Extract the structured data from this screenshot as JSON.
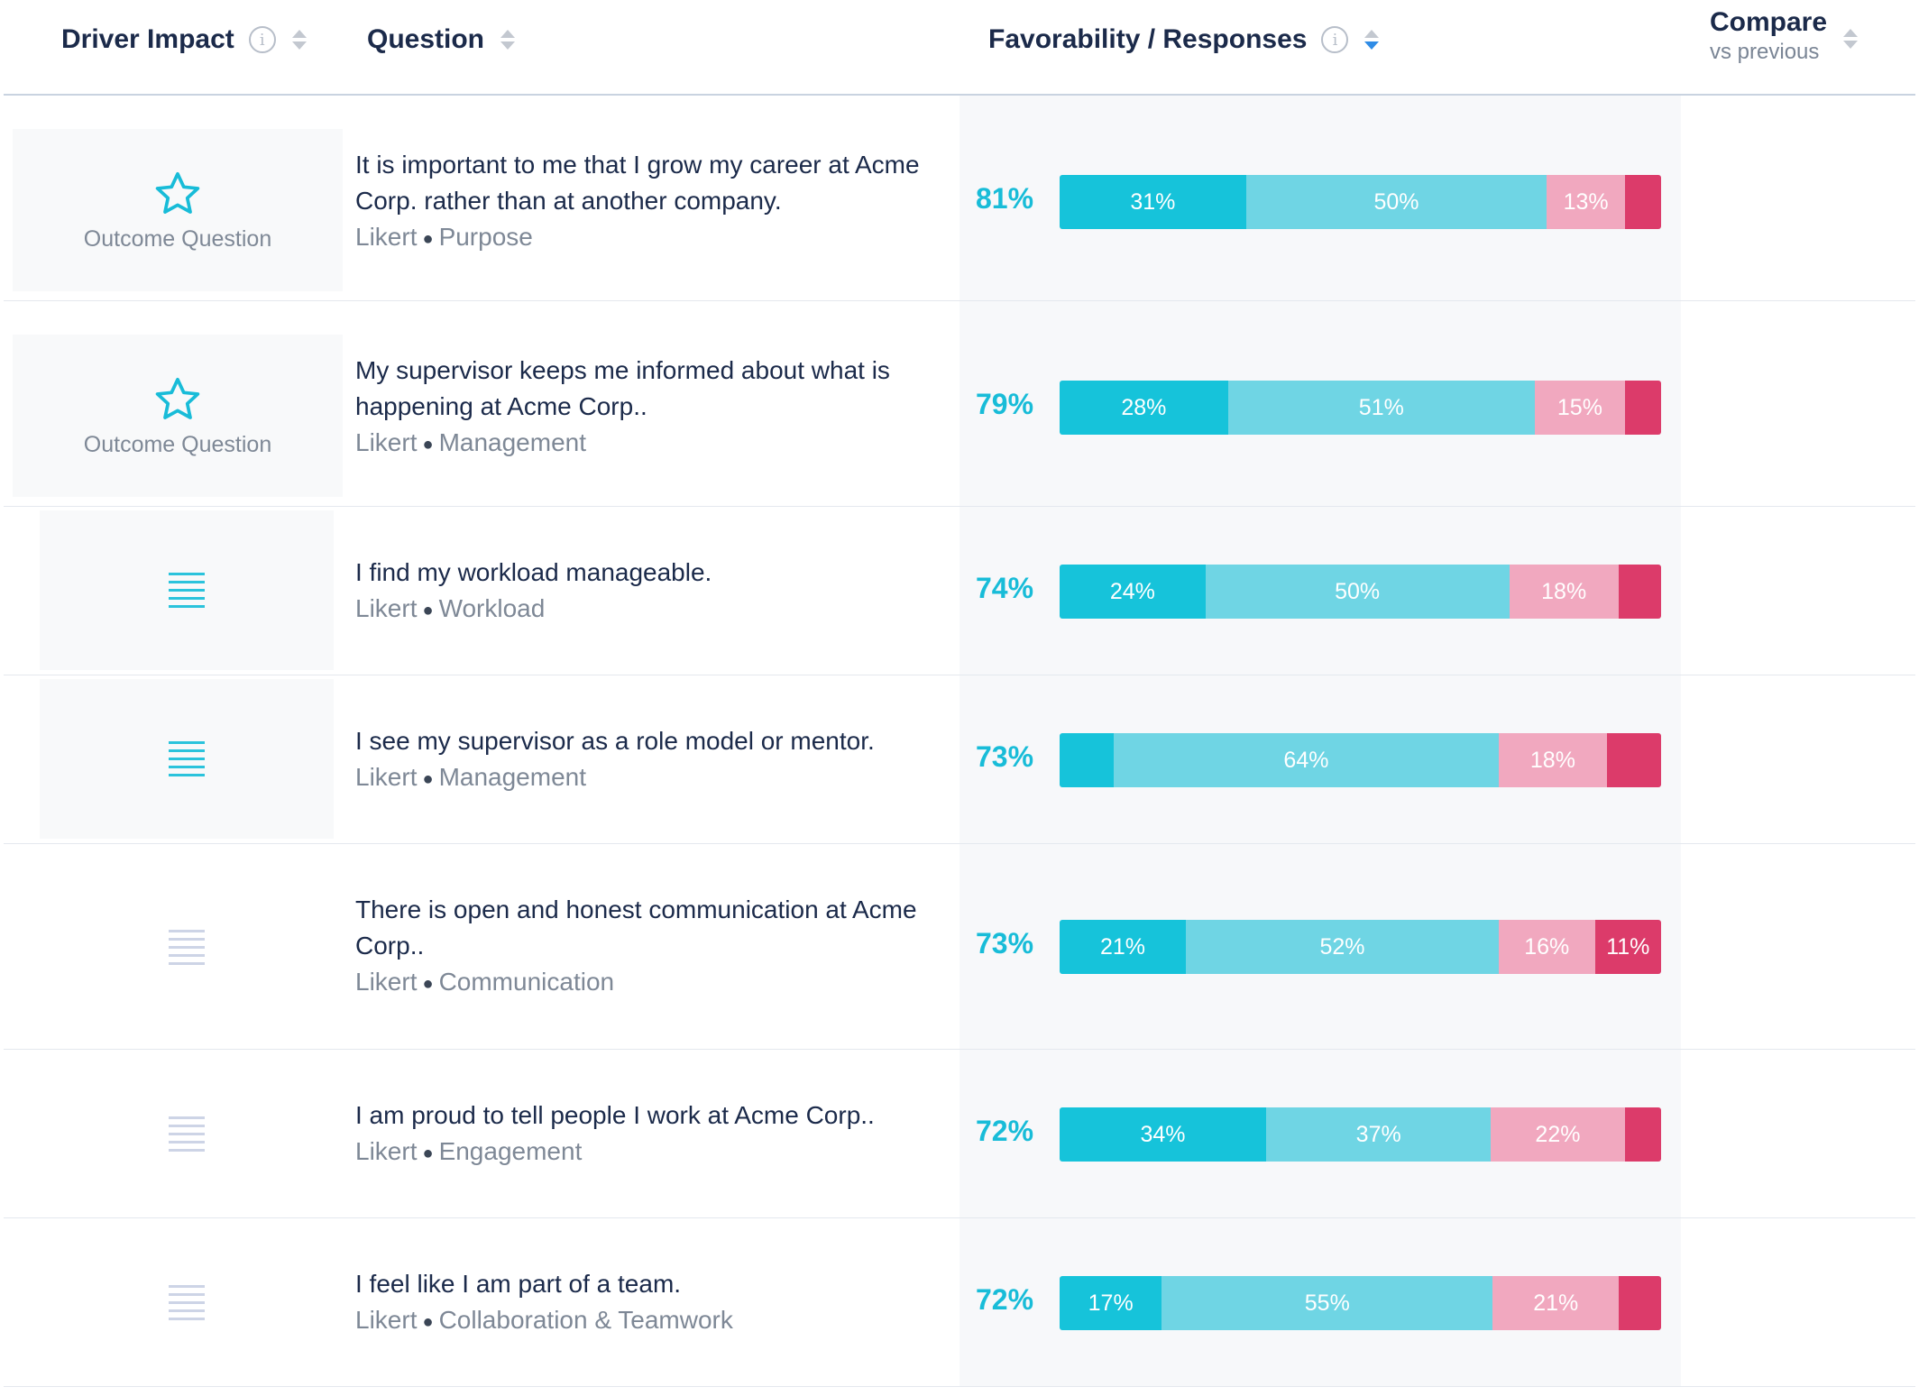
{
  "header": {
    "driver_impact": "Driver Impact",
    "question": "Question",
    "favorability": "Favorability / Responses",
    "compare": "Compare",
    "compare_sub": "vs previous"
  },
  "colors": {
    "strongly_favorable": "#16c3da",
    "favorable": "#6fd5e4",
    "unfavorable": "#f1a8bf",
    "strongly_unfavorable": "#dc3b6a",
    "accent": "#18bcd8"
  },
  "rows": [
    {
      "driver": "outcome",
      "outcome_label": "Outcome Question",
      "question": "It is important to me that I grow my career at Acme Corp. rather than at another company.",
      "type": "Likert",
      "category": "Purpose",
      "favorability": "81%",
      "segments": [
        {
          "value": 31,
          "label": "31%"
        },
        {
          "value": 50,
          "label": "50%"
        },
        {
          "value": 13,
          "label": "13%"
        },
        {
          "value": 6,
          "label": ""
        }
      ]
    },
    {
      "driver": "outcome",
      "outcome_label": "Outcome Question",
      "question": "My supervisor keeps me informed about what is happening at Acme Corp..",
      "type": "Likert",
      "category": "Management",
      "favorability": "79%",
      "segments": [
        {
          "value": 28,
          "label": "28%"
        },
        {
          "value": 51,
          "label": "51%"
        },
        {
          "value": 15,
          "label": "15%"
        },
        {
          "value": 6,
          "label": ""
        }
      ]
    },
    {
      "driver": "lines",
      "question": "I find my workload manageable.",
      "type": "Likert",
      "category": "Workload",
      "favorability": "74%",
      "segments": [
        {
          "value": 24,
          "label": "24%"
        },
        {
          "value": 50,
          "label": "50%"
        },
        {
          "value": 18,
          "label": "18%"
        },
        {
          "value": 7,
          "label": ""
        }
      ]
    },
    {
      "driver": "lines",
      "question": "I see my supervisor as a role model or mentor.",
      "type": "Likert",
      "category": "Management",
      "favorability": "73%",
      "segments": [
        {
          "value": 9,
          "label": ""
        },
        {
          "value": 64,
          "label": "64%"
        },
        {
          "value": 18,
          "label": "18%"
        },
        {
          "value": 9,
          "label": ""
        }
      ]
    },
    {
      "driver": "lines-muted",
      "question": "There is open and honest communication at Acme Corp..",
      "type": "Likert",
      "category": "Communication",
      "favorability": "73%",
      "segments": [
        {
          "value": 21,
          "label": "21%"
        },
        {
          "value": 52,
          "label": "52%"
        },
        {
          "value": 16,
          "label": "16%"
        },
        {
          "value": 11,
          "label": "11%"
        }
      ]
    },
    {
      "driver": "lines-muted",
      "question": "I am proud to tell people I work at Acme Corp..",
      "type": "Likert",
      "category": "Engagement",
      "favorability": "72%",
      "segments": [
        {
          "value": 34,
          "label": "34%"
        },
        {
          "value": 37,
          "label": "37%"
        },
        {
          "value": 22,
          "label": "22%"
        },
        {
          "value": 6,
          "label": ""
        }
      ]
    },
    {
      "driver": "lines-muted",
      "question": "I feel like I am part of a team.",
      "type": "Likert",
      "category": "Collaboration & Teamwork",
      "favorability": "72%",
      "segments": [
        {
          "value": 17,
          "label": "17%"
        },
        {
          "value": 55,
          "label": "55%"
        },
        {
          "value": 21,
          "label": "21%"
        },
        {
          "value": 7,
          "label": ""
        }
      ]
    }
  ]
}
